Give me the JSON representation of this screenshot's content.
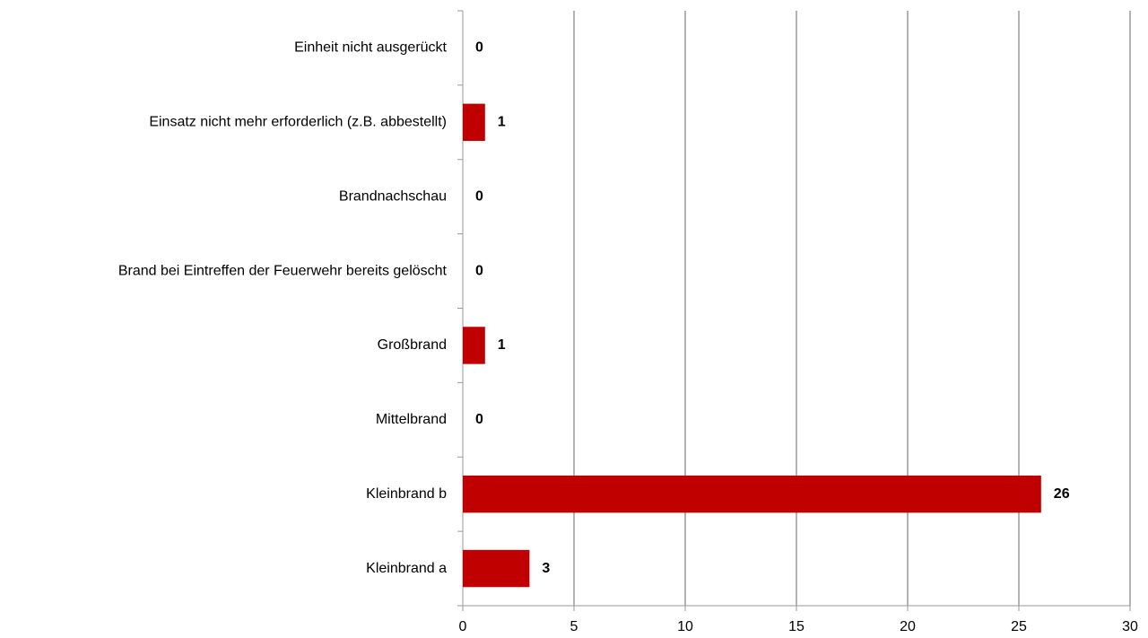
{
  "chart_data": {
    "type": "barh",
    "categories": [
      "Einheit nicht ausgerückt",
      "Einsatz nicht mehr erforderlich (z.B. abbestellt)",
      "Brandnachschau",
      "Brand bei Eintreffen der Feuerwehr bereits gelöscht",
      "Großbrand",
      "Mittelbrand",
      "Kleinbrand b",
      "Kleinbrand a"
    ],
    "values": [
      0,
      1,
      0,
      0,
      1,
      0,
      26,
      3
    ],
    "color": "#c00000",
    "xlim": [
      0,
      30
    ],
    "xticks": [
      0,
      5,
      10,
      15,
      20,
      25,
      30
    ],
    "grid": true
  }
}
